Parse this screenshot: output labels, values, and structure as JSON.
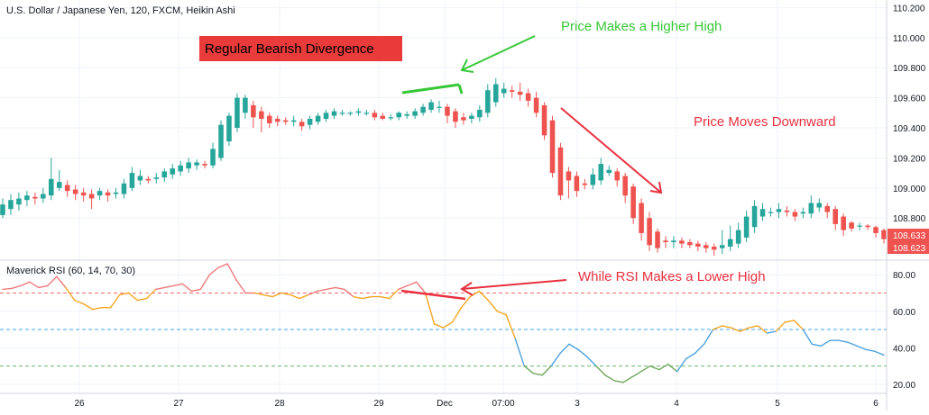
{
  "header": {
    "title": "U.S. Dollar / Japanese Yen, 120, FXCM, Heikin Ashi"
  },
  "indicator": {
    "title": "Maverick RSI (60, 14, 70, 30)",
    "levels": [
      70,
      50,
      30
    ]
  },
  "annotations": {
    "divergence_label": "Regular Bearish Divergence",
    "higher_high": "Price Makes a Higher High",
    "moves_down": "Price Moves Downward",
    "rsi_lower_high": "While RSI Makes a Lower High"
  },
  "price_badges": {
    "upper": "108.633",
    "lower": "108.623"
  },
  "colors": {
    "up": "#26a69a",
    "down": "#ef5350",
    "annotation_green": "#37c837",
    "annotation_red": "#e8313f",
    "label_bg": "#ea3b3b",
    "rsi_overbought": "#ef7a7a",
    "rsi_mid": "#f5a623",
    "rsi_low": "#4ea3e0",
    "rsi_oversold": "#6fa85e"
  },
  "chart_data": [
    {
      "type": "candlestick",
      "title": "U.S. Dollar / Japanese Yen, 120, FXCM, Heikin Ashi",
      "y_axis": {
        "side": "right",
        "ticks": [
          "110.200",
          "110.000",
          "109.800",
          "109.600",
          "109.400",
          "109.200",
          "109.000",
          "108.800"
        ],
        "range": [
          108.52,
          110.25
        ]
      },
      "x_axis": {
        "ticks": [
          "26",
          "27",
          "28",
          "29",
          "Dec",
          "07:00",
          "3",
          "4",
          "5",
          "6"
        ]
      },
      "candles": [
        [
          108.82,
          108.89,
          108.8,
          108.93
        ],
        [
          108.86,
          108.92,
          108.82,
          108.96
        ],
        [
          108.89,
          108.93,
          108.85,
          108.97
        ],
        [
          108.92,
          108.95,
          108.88,
          108.98
        ],
        [
          108.94,
          108.93,
          108.89,
          108.97
        ],
        [
          108.93,
          108.96,
          108.9,
          109.0
        ],
        [
          108.95,
          109.06,
          108.92,
          109.2
        ],
        [
          109.0,
          109.04,
          108.98,
          109.12
        ],
        [
          109.02,
          108.98,
          108.94,
          109.05
        ],
        [
          108.99,
          108.96,
          108.92,
          109.02
        ],
        [
          108.97,
          108.95,
          108.91,
          109.0
        ],
        [
          108.96,
          108.93,
          108.86,
          108.99
        ],
        [
          108.95,
          108.98,
          108.92,
          109.0
        ],
        [
          108.97,
          108.95,
          108.91,
          108.99
        ],
        [
          108.96,
          108.97,
          108.93,
          109.0
        ],
        [
          108.96,
          109.03,
          108.93,
          109.06
        ],
        [
          109.0,
          109.1,
          108.98,
          109.14
        ],
        [
          109.05,
          109.08,
          109.02,
          109.12
        ],
        [
          109.06,
          109.05,
          109.03,
          109.08
        ],
        [
          109.06,
          109.07,
          109.03,
          109.1
        ],
        [
          109.07,
          109.11,
          109.04,
          109.13
        ],
        [
          109.09,
          109.13,
          109.06,
          109.16
        ],
        [
          109.11,
          109.15,
          109.08,
          109.18
        ],
        [
          109.13,
          109.17,
          109.1,
          109.2
        ],
        [
          109.15,
          109.17,
          109.12,
          109.19
        ],
        [
          109.16,
          109.15,
          109.13,
          109.18
        ],
        [
          109.15,
          109.26,
          109.13,
          109.3
        ],
        [
          109.2,
          109.42,
          109.18,
          109.45
        ],
        [
          109.31,
          109.48,
          109.28,
          109.5
        ],
        [
          109.4,
          109.6,
          109.37,
          109.63
        ],
        [
          109.5,
          109.6,
          109.46,
          109.62
        ],
        [
          109.55,
          109.47,
          109.4,
          109.58
        ],
        [
          109.51,
          109.46,
          109.37,
          109.54
        ],
        [
          109.48,
          109.43,
          109.4,
          109.5
        ],
        [
          109.46,
          109.44,
          109.41,
          109.48
        ],
        [
          109.45,
          109.44,
          109.42,
          109.47
        ],
        [
          109.44,
          109.45,
          109.41,
          109.48
        ],
        [
          109.44,
          109.41,
          109.38,
          109.46
        ],
        [
          109.42,
          109.46,
          109.39,
          109.48
        ],
        [
          109.44,
          109.48,
          109.42,
          109.5
        ],
        [
          109.46,
          109.5,
          109.44,
          109.52
        ],
        [
          109.48,
          109.51,
          109.46,
          109.53
        ],
        [
          109.5,
          109.5,
          109.48,
          109.52
        ],
        [
          109.5,
          109.5,
          109.48,
          109.51
        ],
        [
          109.5,
          109.51,
          109.48,
          109.53
        ],
        [
          109.5,
          109.5,
          109.48,
          109.52
        ],
        [
          109.5,
          109.47,
          109.45,
          109.52
        ],
        [
          109.48,
          109.46,
          109.45,
          109.5
        ],
        [
          109.47,
          109.47,
          109.45,
          109.49
        ],
        [
          109.47,
          109.5,
          109.45,
          109.51
        ],
        [
          109.48,
          109.49,
          109.46,
          109.51
        ],
        [
          109.48,
          109.51,
          109.46,
          109.53
        ],
        [
          109.5,
          109.54,
          109.48,
          109.56
        ],
        [
          109.52,
          109.57,
          109.5,
          109.59
        ],
        [
          109.54,
          109.54,
          109.5,
          109.58
        ],
        [
          109.54,
          109.48,
          109.43,
          109.56
        ],
        [
          109.51,
          109.44,
          109.4,
          109.53
        ],
        [
          109.47,
          109.45,
          109.42,
          109.5
        ],
        [
          109.46,
          109.48,
          109.43,
          109.5
        ],
        [
          109.47,
          109.52,
          109.44,
          109.55
        ],
        [
          109.5,
          109.65,
          109.47,
          109.69
        ],
        [
          109.57,
          109.69,
          109.54,
          109.73
        ],
        [
          109.63,
          109.66,
          109.6,
          109.7
        ],
        [
          109.65,
          109.64,
          109.6,
          109.68
        ],
        [
          109.64,
          109.62,
          109.58,
          109.7
        ],
        [
          109.63,
          109.58,
          109.54,
          109.66
        ],
        [
          109.6,
          109.5,
          109.47,
          109.64
        ],
        [
          109.55,
          109.35,
          109.32,
          109.57
        ],
        [
          109.45,
          109.1,
          109.07,
          109.48
        ],
        [
          109.27,
          108.95,
          108.92,
          109.3
        ],
        [
          109.11,
          109.05,
          108.93,
          109.14
        ],
        [
          109.08,
          108.98,
          108.94,
          109.11
        ],
        [
          109.03,
          109.02,
          108.99,
          109.06
        ],
        [
          109.02,
          109.09,
          108.99,
          109.13
        ],
        [
          109.05,
          109.16,
          109.02,
          109.2
        ],
        [
          109.1,
          109.12,
          109.08,
          109.15
        ],
        [
          109.11,
          109.05,
          109.01,
          109.13
        ],
        [
          109.08,
          108.95,
          108.9,
          109.1
        ],
        [
          109.01,
          108.8,
          108.76,
          109.03
        ],
        [
          108.9,
          108.7,
          108.65,
          108.93
        ],
        [
          108.8,
          108.62,
          108.58,
          108.84
        ],
        [
          108.71,
          108.6,
          108.57,
          108.73
        ],
        [
          108.65,
          108.64,
          108.6,
          108.68
        ],
        [
          108.64,
          108.65,
          108.6,
          108.68
        ],
        [
          108.65,
          108.63,
          108.6,
          108.67
        ],
        [
          108.64,
          108.62,
          108.6,
          108.66
        ],
        [
          108.63,
          108.61,
          108.58,
          108.65
        ],
        [
          108.62,
          108.6,
          108.57,
          108.64
        ],
        [
          108.61,
          108.59,
          108.55,
          108.63
        ],
        [
          108.6,
          108.62,
          108.56,
          108.72
        ],
        [
          108.61,
          108.66,
          108.58,
          108.75
        ],
        [
          108.63,
          108.72,
          108.6,
          108.77
        ],
        [
          108.67,
          108.81,
          108.64,
          108.85
        ],
        [
          108.74,
          108.88,
          108.7,
          108.92
        ],
        [
          108.81,
          108.86,
          108.78,
          108.9
        ],
        [
          108.84,
          108.84,
          108.81,
          108.87
        ],
        [
          108.84,
          108.86,
          108.8,
          108.9
        ],
        [
          108.85,
          108.84,
          108.81,
          108.88
        ],
        [
          108.84,
          108.81,
          108.78,
          108.86
        ],
        [
          108.83,
          108.84,
          108.8,
          108.87
        ],
        [
          108.83,
          108.9,
          108.8,
          108.95
        ],
        [
          108.87,
          108.9,
          108.84,
          108.93
        ],
        [
          108.88,
          108.84,
          108.8,
          108.9
        ],
        [
          108.86,
          108.76,
          108.72,
          108.88
        ],
        [
          108.81,
          108.72,
          108.68,
          108.83
        ],
        [
          108.77,
          108.73,
          108.71,
          108.78
        ],
        [
          108.75,
          108.75,
          108.72,
          108.77
        ],
        [
          108.75,
          108.74,
          108.72,
          108.76
        ],
        [
          108.74,
          108.7,
          108.67,
          108.75
        ],
        [
          108.72,
          108.66,
          108.63,
          108.73
        ]
      ]
    },
    {
      "type": "line",
      "title": "Maverick RSI (60, 14, 70, 30)",
      "y_axis": {
        "side": "right",
        "ticks": [
          "80.00",
          "60.00",
          "40.00",
          "20.00"
        ],
        "range": [
          15,
          88
        ]
      },
      "x_axis": {
        "ticks": [
          "26",
          "27",
          "28",
          "29",
          "Dec",
          "07:00",
          "3",
          "4",
          "5",
          "6"
        ]
      },
      "reference_lines": [
        70,
        50,
        30
      ],
      "series": [
        {
          "values": [
            72,
            72.5,
            74,
            76,
            73,
            74,
            79,
            73,
            66,
            64,
            61,
            62,
            62,
            69,
            70,
            66,
            67,
            72,
            73,
            74,
            75,
            71,
            72,
            80,
            84,
            86,
            77,
            70,
            70,
            69,
            68,
            70,
            69,
            67,
            69,
            71,
            72,
            73,
            72,
            68,
            67,
            68,
            68,
            67,
            72,
            74,
            76,
            70,
            53,
            51,
            54,
            62,
            68,
            71,
            66,
            60,
            58,
            45,
            30,
            26,
            25,
            30,
            37,
            42,
            39,
            35,
            30,
            25,
            22,
            21,
            24,
            27,
            30,
            28,
            31,
            27,
            34,
            37,
            42,
            50,
            52,
            51,
            49,
            51,
            52,
            48,
            49,
            54,
            55,
            50,
            42,
            41,
            44,
            44,
            43,
            41,
            39,
            38,
            36
          ]
        }
      ]
    }
  ]
}
